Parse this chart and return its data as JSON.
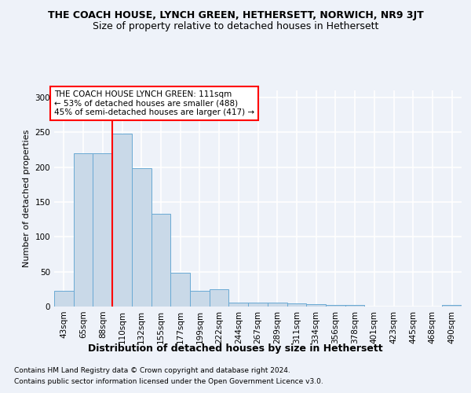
{
  "title": "THE COACH HOUSE, LYNCH GREEN, HETHERSETT, NORWICH, NR9 3JT",
  "subtitle": "Size of property relative to detached houses in Hethersett",
  "xlabel": "Distribution of detached houses by size in Hethersett",
  "ylabel": "Number of detached properties",
  "footer_line1": "Contains HM Land Registry data © Crown copyright and database right 2024.",
  "footer_line2": "Contains public sector information licensed under the Open Government Licence v3.0.",
  "bar_labels": [
    "43sqm",
    "65sqm",
    "88sqm",
    "110sqm",
    "132sqm",
    "155sqm",
    "177sqm",
    "199sqm",
    "222sqm",
    "244sqm",
    "267sqm",
    "289sqm",
    "311sqm",
    "334sqm",
    "356sqm",
    "378sqm",
    "401sqm",
    "423sqm",
    "445sqm",
    "468sqm",
    "490sqm"
  ],
  "bar_values": [
    22,
    220,
    220,
    248,
    198,
    133,
    48,
    22,
    25,
    6,
    6,
    6,
    4,
    3,
    2,
    2,
    0,
    0,
    0,
    0,
    2
  ],
  "bar_color": "#c9d9e8",
  "bar_edge_color": "#6aaad4",
  "annotation_text": "THE COACH HOUSE LYNCH GREEN: 111sqm\n← 53% of detached houses are smaller (488)\n45% of semi-detached houses are larger (417) →",
  "annotation_box_color": "white",
  "annotation_box_edge_color": "red",
  "vline_color": "red",
  "vline_pos": 2.5,
  "ylim": [
    0,
    310
  ],
  "background_color": "#eef2f9",
  "plot_bg_color": "#eef2f9",
  "grid_color": "white",
  "title_fontsize": 9,
  "subtitle_fontsize": 9,
  "xlabel_fontsize": 9,
  "ylabel_fontsize": 8,
  "tick_fontsize": 7.5,
  "annotation_fontsize": 7.5,
  "footer_fontsize": 6.5
}
